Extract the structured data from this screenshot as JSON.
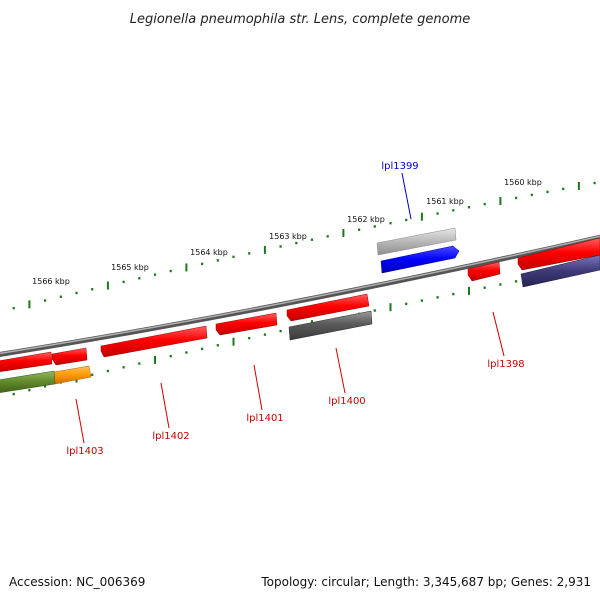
{
  "title": "Legionella pneumophila str. Lens, complete genome",
  "footer": {
    "accession": "Accession: NC_006369",
    "summary": "Topology: circular; Length: 3,345,687 bp; Genes: 2,931"
  },
  "kbp_labels": [
    "1560 kbp",
    "1561 kbp",
    "1562 kbp",
    "1563 kbp",
    "1564 kbp",
    "1565 kbp",
    "1566 kbp"
  ],
  "gene_labels": [
    "lpl1399",
    "lpl1398",
    "lpl1400",
    "lpl1401",
    "lpl1402",
    "lpl1403"
  ],
  "colors": {
    "forward_gene": "#ff0000",
    "reverse_feature": "#555555",
    "highlight_blue": "#0000ff",
    "highlight_gray": "#b8b8b8",
    "purple": "#3d3a7a",
    "olive": "#5f8a2a",
    "orange": "#ff9900",
    "tick": "#1a7a1a",
    "backbone": "#7a7a7a"
  }
}
